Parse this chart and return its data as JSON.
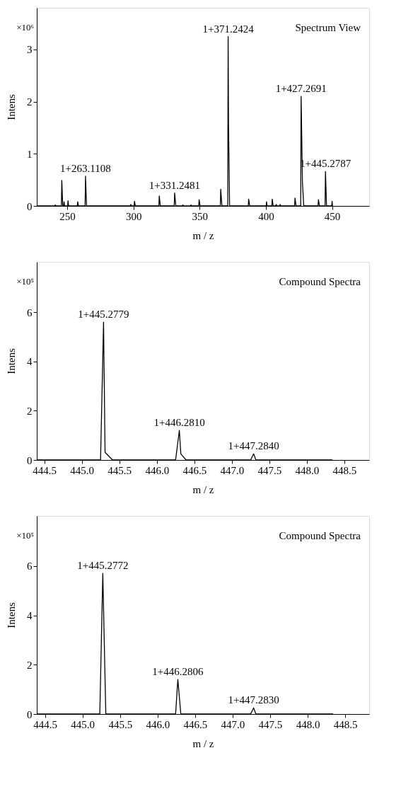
{
  "chart_data": [
    {
      "type": "line",
      "xlabel": "m / z",
      "ylabel": "Intens",
      "color": "#000000",
      "x": [
        227,
        240.7,
        241,
        241.5,
        245.6,
        245.9,
        246.6,
        247.3,
        247.6,
        248,
        250.3,
        250.6,
        251,
        257.6,
        257.9,
        258.5,
        263.5,
        263.8,
        264.6,
        297.7,
        298,
        298.4,
        300.5,
        300.8,
        301.4,
        319.2,
        319.5,
        320.3,
        330.8,
        331.1,
        332,
        337,
        337.3,
        337.6,
        343.2,
        343.5,
        343.8,
        349.3,
        349.6,
        350.3,
        365.6,
        365.9,
        366.8,
        371.2,
        371.5,
        371.8,
        372.6,
        386.7,
        387,
        387.8,
        400.2,
        400.5,
        400.9,
        404.5,
        404.8,
        405.5,
        407.5,
        407.8,
        408.2,
        410.5,
        410.8,
        411.2,
        421.7,
        422,
        422.8,
        426.3,
        426.6,
        427.2,
        427.6,
        428.6,
        439.4,
        439.7,
        440.5,
        444.7,
        445,
        445.8,
        449.7,
        450,
        450.3
      ],
      "values": [
        0,
        0,
        0.02,
        0,
        0,
        0.49,
        0,
        0,
        0.08,
        0,
        0,
        0.1,
        0,
        0,
        0.08,
        0,
        0,
        0.57,
        0,
        0,
        0.03,
        0,
        0,
        0.09,
        0,
        0,
        0.19,
        0,
        0,
        0.25,
        0,
        0,
        0.02,
        0,
        0,
        0.02,
        0,
        0,
        0.12,
        0,
        0,
        0.32,
        0,
        0,
        3.25,
        1.55,
        0,
        0,
        0.13,
        0,
        0,
        0.08,
        0,
        0,
        0.13,
        0,
        0,
        0.03,
        0,
        0,
        0.03,
        0,
        0,
        0.15,
        0,
        0,
        2.1,
        1.15,
        0.45,
        0,
        0,
        0.12,
        0,
        0,
        0.66,
        0,
        0,
        0.09,
        0
      ],
      "xlim": [
        227,
        478
      ],
      "ylim": [
        0,
        3.8
      ],
      "xticks": [
        250,
        300,
        350,
        400,
        450
      ],
      "yticks": [
        0,
        1,
        2,
        3
      ],
      "annotations": [
        "×10⁶",
        "Spectrum View",
        {
          "text": "1+263.1108",
          "x": 263.8,
          "y": 0.57
        },
        {
          "text": "1+331.2481",
          "x": 331.1,
          "y": 0.25
        },
        {
          "text": "1+371.2424",
          "x": 371.5,
          "y": 3.25
        },
        {
          "text": "1+427.2691",
          "x": 426.6,
          "y": 2.1
        },
        {
          "text": "1+445.2787",
          "x": 445,
          "y": 0.66
        }
      ]
    },
    {
      "type": "line",
      "xlabel": "m / z",
      "ylabel": "Intens",
      "color": "#000000",
      "x": [
        444.4,
        445.25,
        445.29,
        445.31,
        445.41,
        446.25,
        446.3,
        446.32,
        446.39,
        447.25,
        447.29,
        447.32,
        448.34
      ],
      "values": [
        0,
        0,
        5.6,
        0.31,
        0,
        0,
        1.2,
        0.25,
        0,
        0,
        0.25,
        0,
        0
      ],
      "xlim": [
        444.4,
        448.83
      ],
      "ylim": [
        0,
        8.05
      ],
      "xticks": [
        444.5,
        {
          "value": 445,
          "label": "445.0"
        },
        445.5,
        {
          "value": 446,
          "label": "446.0"
        },
        446.5,
        {
          "value": 447,
          "label": "447.0"
        },
        447.5,
        {
          "value": 448,
          "label": "448.0"
        },
        448.5
      ],
      "yticks": [
        0,
        2,
        4,
        6
      ],
      "annotations": [
        "×10⁵",
        "Compound Spectra",
        {
          "text": "1+445.2779",
          "x": 445.29,
          "y": 5.6
        },
        {
          "text": "1+446.2810",
          "x": 446.3,
          "y": 1.2
        },
        {
          "text": "1+447.2840",
          "x": 447.29,
          "y": 0.25
        }
      ]
    },
    {
      "type": "line",
      "xlabel": "m / z",
      "ylabel": "Intens",
      "color": "#000000",
      "x": [
        444.39,
        445.23,
        445.27,
        445.31,
        446.24,
        446.27,
        446.31,
        447.24,
        447.28,
        447.31,
        448.34
      ],
      "values": [
        0,
        0,
        5.7,
        0,
        0,
        1.4,
        0,
        0,
        0.25,
        0,
        0
      ],
      "xlim": [
        444.39,
        448.82
      ],
      "ylim": [
        0,
        8.03
      ],
      "xticks": [
        444.5,
        {
          "value": 445,
          "label": "445.0"
        },
        445.5,
        {
          "value": 446,
          "label": "446.0"
        },
        446.5,
        {
          "value": 447,
          "label": "447.0"
        },
        447.5,
        {
          "value": 448,
          "label": "448.0"
        },
        448.5
      ],
      "yticks": [
        0,
        2,
        4,
        6
      ],
      "annotations": [
        "×10⁵",
        "Compound Spectra",
        {
          "text": "1+445.2772",
          "x": 445.27,
          "y": 5.7
        },
        {
          "text": "1+446.2806",
          "x": 446.27,
          "y": 1.4
        },
        {
          "text": "1+447.2830",
          "x": 447.28,
          "y": 0.25
        }
      ]
    }
  ]
}
